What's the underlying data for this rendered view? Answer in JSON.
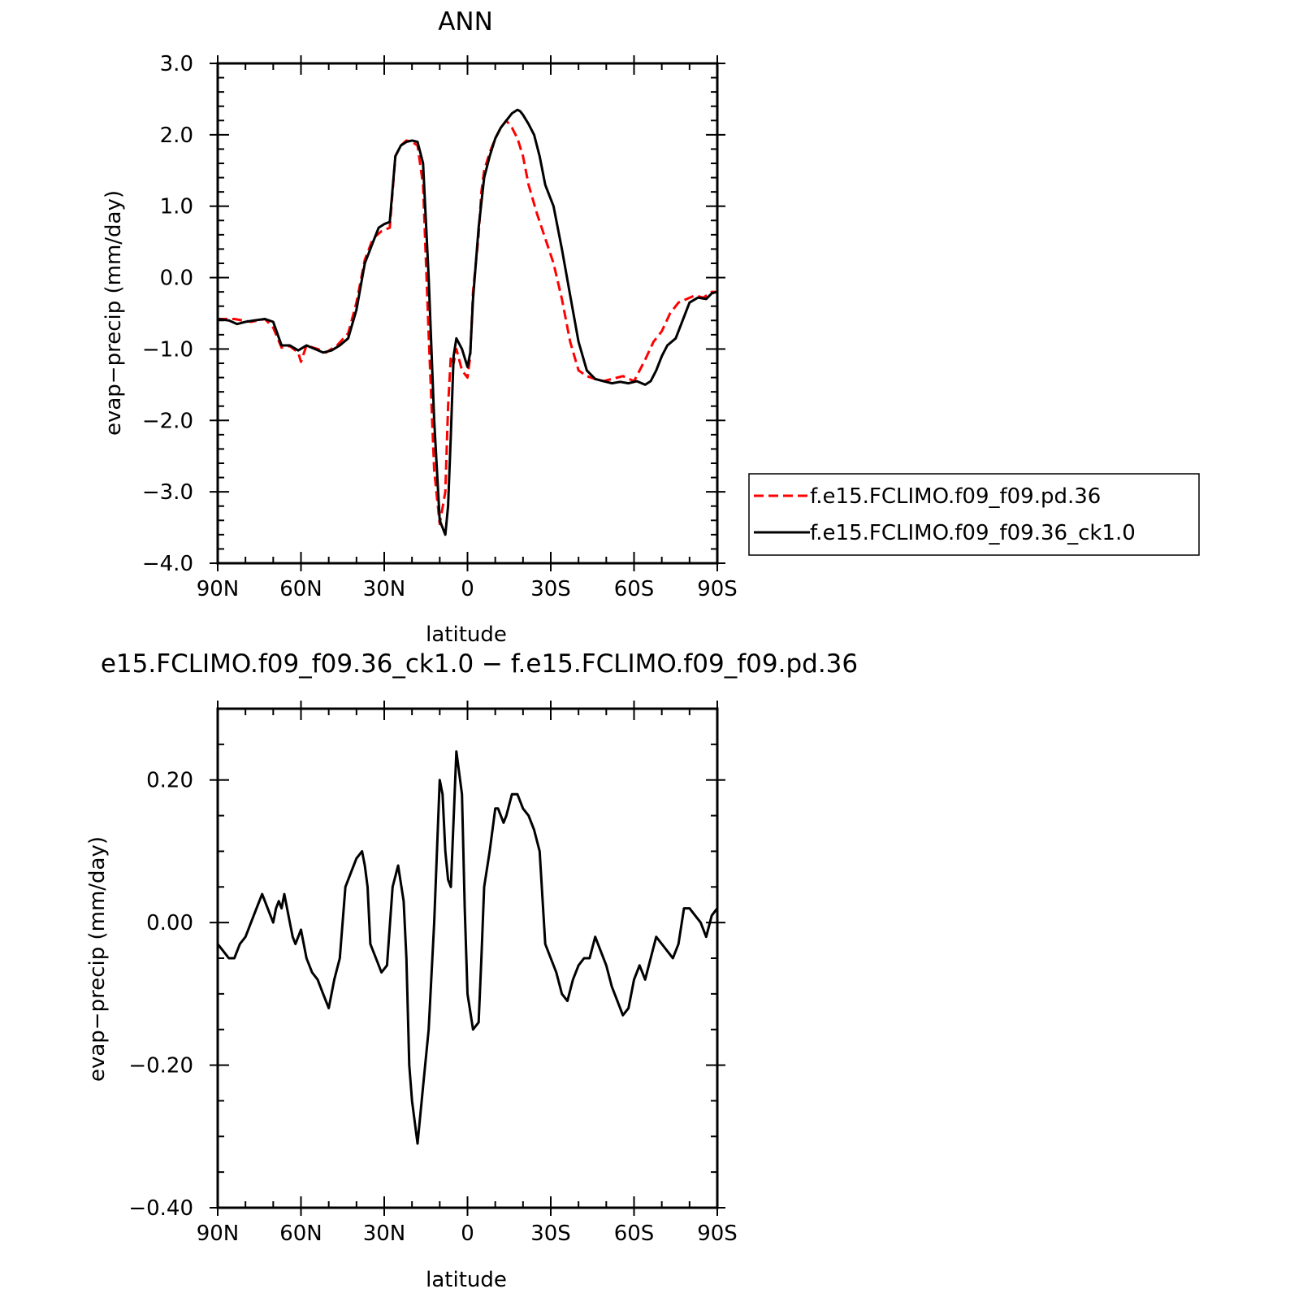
{
  "chart_data": [
    {
      "type": "line",
      "title": "ANN",
      "xlabel": "latitude",
      "ylabel": "evap−precip (mm/day)",
      "xlim": [
        90,
        -90
      ],
      "ylim": [
        -4.0,
        3.0
      ],
      "x_ticks": [
        "90N",
        "60N",
        "30N",
        "0",
        "30S",
        "60S",
        "90S"
      ],
      "y_ticks": [
        "3.0",
        "2.0",
        "1.0",
        "0.0",
        "−1.0",
        "−2.0",
        "−3.0",
        "−4.0"
      ],
      "legend": "right",
      "series": [
        {
          "name": "f.e15.FCLIMO.f09_f09.pd.36",
          "color": "#ff0000",
          "dash": "dashed",
          "x": [
            90,
            84,
            78,
            73,
            70,
            67,
            64,
            61,
            60,
            58,
            54,
            51,
            47,
            43,
            40,
            37,
            34,
            31,
            28,
            26,
            24,
            22,
            20,
            18,
            16,
            14,
            12,
            10,
            8,
            7,
            6,
            5,
            4,
            2,
            0,
            -1,
            -2,
            -4,
            -5,
            -6,
            -8,
            -10,
            -12,
            -14,
            -16,
            -18,
            -20,
            -22,
            -25,
            -28,
            -31,
            -34,
            -37,
            -40,
            -43,
            -46,
            -49,
            -52,
            -56,
            -60,
            -64,
            -67,
            -70,
            -73,
            -76,
            -79,
            -82,
            -85,
            -88,
            -90
          ],
          "y": [
            -0.58,
            -0.58,
            -0.62,
            -0.58,
            -0.7,
            -0.98,
            -0.96,
            -1.05,
            -1.18,
            -0.95,
            -1.0,
            -1.05,
            -0.95,
            -0.78,
            -0.35,
            0.25,
            0.55,
            0.65,
            0.7,
            1.7,
            1.85,
            1.92,
            1.9,
            1.85,
            1.3,
            -0.8,
            -2.7,
            -3.45,
            -3.0,
            -1.8,
            -1.1,
            -1.2,
            -1.0,
            -1.3,
            -1.4,
            -1.1,
            -0.2,
            0.6,
            1.2,
            1.5,
            1.75,
            1.95,
            2.1,
            2.2,
            2.1,
            1.95,
            1.7,
            1.3,
            0.9,
            0.55,
            0.2,
            -0.3,
            -0.9,
            -1.3,
            -1.38,
            -1.42,
            -1.45,
            -1.42,
            -1.38,
            -1.45,
            -1.15,
            -0.9,
            -0.75,
            -0.5,
            -0.35,
            -0.3,
            -0.25,
            -0.28,
            -0.2,
            -0.2
          ]
        },
        {
          "name": "f.e15.FCLIMO.f09_f09.36_ck1.0",
          "color": "#000000",
          "dash": "solid",
          "x": [
            90,
            86,
            83,
            80,
            77,
            73,
            70,
            67,
            64,
            61,
            58,
            55,
            52,
            49,
            46,
            43,
            40,
            37,
            34,
            32,
            30,
            28,
            26,
            24,
            22,
            20,
            18,
            16,
            14,
            12,
            10,
            8,
            7,
            6,
            5,
            4,
            2,
            0,
            -1,
            -2,
            -4,
            -6,
            -8,
            -10,
            -12,
            -14,
            -16,
            -18,
            -19,
            -20,
            -22,
            -24,
            -26,
            -28,
            -31,
            -34,
            -37,
            -40,
            -43,
            -46,
            -49,
            -52,
            -55,
            -58,
            -61,
            -64,
            -66,
            -68,
            -70,
            -72,
            -75,
            -78,
            -80,
            -83,
            -86,
            -88,
            -90
          ],
          "y": [
            -0.58,
            -0.6,
            -0.65,
            -0.62,
            -0.6,
            -0.58,
            -0.62,
            -0.95,
            -0.95,
            -1.02,
            -0.95,
            -1.0,
            -1.05,
            -1.02,
            -0.95,
            -0.85,
            -0.45,
            0.2,
            0.5,
            0.7,
            0.75,
            0.78,
            1.7,
            1.85,
            1.9,
            1.92,
            1.9,
            1.6,
            0.0,
            -2.0,
            -3.4,
            -3.6,
            -3.2,
            -2.2,
            -1.1,
            -0.85,
            -1.0,
            -1.25,
            -1.05,
            -0.3,
            0.7,
            1.4,
            1.7,
            1.95,
            2.1,
            2.2,
            2.3,
            2.35,
            2.33,
            2.28,
            2.15,
            2.0,
            1.7,
            1.3,
            1.0,
            0.4,
            -0.25,
            -0.9,
            -1.3,
            -1.42,
            -1.45,
            -1.48,
            -1.46,
            -1.48,
            -1.45,
            -1.5,
            -1.45,
            -1.3,
            -1.1,
            -0.95,
            -0.85,
            -0.55,
            -0.35,
            -0.28,
            -0.3,
            -0.22,
            -0.2
          ]
        }
      ]
    },
    {
      "type": "line",
      "title": "e15.FCLIMO.f09_f09.36_ck1.0 − f.e15.FCLIMO.f09_f09.pd.36",
      "xlabel": "latitude",
      "ylabel": "evap−precip (mm/day)",
      "xlim": [
        90,
        -90
      ],
      "ylim": [
        -0.4,
        0.3
      ],
      "x_ticks": [
        "90N",
        "60N",
        "30N",
        "0",
        "30S",
        "60S",
        "90S"
      ],
      "y_ticks": [
        "0.20",
        "0.00",
        "−0.20",
        "−0.40"
      ],
      "series": [
        {
          "color": "#000000",
          "x": [
            90,
            88,
            86,
            84,
            82,
            80,
            78,
            76,
            74,
            72,
            70,
            69,
            68,
            67,
            66,
            64,
            63,
            62,
            60,
            58,
            56,
            54,
            52,
            50,
            48,
            46,
            44,
            42,
            40,
            38,
            37,
            36,
            35,
            33,
            31,
            29,
            27,
            25,
            23,
            22,
            21,
            20,
            18,
            16,
            14,
            12,
            10,
            9,
            8,
            7,
            6,
            4,
            2,
            1,
            0,
            -2,
            -4,
            -5,
            -6,
            -8,
            -10,
            -11,
            -13,
            -14,
            -16,
            -18,
            -20,
            -22,
            -24,
            -26,
            -28,
            -30,
            -32,
            -34,
            -36,
            -38,
            -40,
            -42,
            -44,
            -46,
            -48,
            -50,
            -52,
            -54,
            -56,
            -58,
            -60,
            -62,
            -64,
            -66,
            -68,
            -70,
            -72,
            -74,
            -76,
            -78,
            -80,
            -82,
            -84,
            -86,
            -88,
            -90
          ],
          "y": [
            -0.03,
            -0.04,
            -0.05,
            -0.05,
            -0.03,
            -0.02,
            0.0,
            0.02,
            0.04,
            0.02,
            0.0,
            0.02,
            0.03,
            0.02,
            0.04,
            0.0,
            -0.02,
            -0.03,
            -0.01,
            -0.05,
            -0.07,
            -0.08,
            -0.1,
            -0.12,
            -0.08,
            -0.05,
            0.05,
            0.07,
            0.09,
            0.1,
            0.08,
            0.05,
            -0.03,
            -0.05,
            -0.07,
            -0.06,
            0.05,
            0.08,
            0.03,
            -0.05,
            -0.2,
            -0.25,
            -0.31,
            -0.23,
            -0.15,
            0.0,
            0.2,
            0.18,
            0.1,
            0.06,
            0.05,
            0.24,
            0.18,
            0.02,
            -0.1,
            -0.15,
            -0.14,
            -0.05,
            0.05,
            0.1,
            0.16,
            0.16,
            0.14,
            0.15,
            0.18,
            0.18,
            0.16,
            0.15,
            0.13,
            0.1,
            -0.03,
            -0.05,
            -0.07,
            -0.1,
            -0.11,
            -0.08,
            -0.06,
            -0.05,
            -0.05,
            -0.02,
            -0.04,
            -0.06,
            -0.09,
            -0.11,
            -0.13,
            -0.12,
            -0.08,
            -0.06,
            -0.08,
            -0.05,
            -0.02,
            -0.03,
            -0.04,
            -0.05,
            -0.03,
            0.02,
            0.02,
            0.01,
            0.0,
            -0.02,
            0.01,
            0.02
          ]
        }
      ]
    }
  ],
  "legend": {
    "entries": [
      "f.e15.FCLIMO.f09_f09.pd.36",
      "f.e15.FCLIMO.f09_f09.36_ck1.0"
    ]
  }
}
